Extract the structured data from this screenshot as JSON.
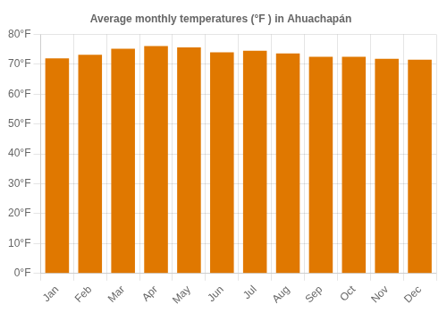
{
  "chart_data": {
    "type": "bar",
    "title": "Average monthly temperatures (°F ) in Ahuachapán",
    "categories": [
      "Jan",
      "Feb",
      "Mar",
      "Apr",
      "May",
      "Jun",
      "Jul",
      "Aug",
      "Sep",
      "Oct",
      "Nov",
      "Dec"
    ],
    "values": [
      72.0,
      73.2,
      75.2,
      76.1,
      75.6,
      74.0,
      74.5,
      73.6,
      72.5,
      72.5,
      71.8,
      71.5
    ],
    "color": "#E07800",
    "ylim": [
      0,
      80
    ],
    "yticks": [
      {
        "value": 0,
        "label": "0°F"
      },
      {
        "value": 10,
        "label": "10°F"
      },
      {
        "value": 20,
        "label": "20°F"
      },
      {
        "value": 30,
        "label": "30°F"
      },
      {
        "value": 40,
        "label": "40°F"
      },
      {
        "value": 50,
        "label": "50°F"
      },
      {
        "value": 60,
        "label": "60°F"
      },
      {
        "value": 70,
        "label": "70°F"
      },
      {
        "value": 80,
        "label": "80°F"
      }
    ],
    "grid": true
  }
}
